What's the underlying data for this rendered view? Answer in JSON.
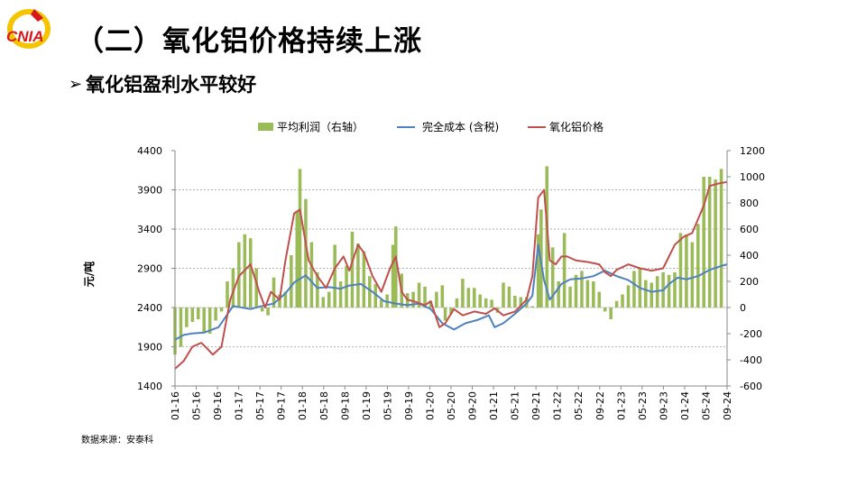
{
  "header": {
    "logo_text": "CNIA",
    "title": "（二）氧化铝价格持续上涨",
    "subtitle": "氧化铝盈利水平较好",
    "subtitle_marker": "arrow-right-icon"
  },
  "source_note": "数据来源：安泰科",
  "colors": {
    "bar": "#9bbb59",
    "cost_line": "#4f81bd",
    "price_line": "#c0504d",
    "logo_red": "#d7191c",
    "logo_yellow": "#f5c400"
  },
  "chart_data": {
    "type": "bar+line",
    "title": "",
    "ylabel": "元/吨",
    "y2label": "",
    "ylim": [
      1400,
      4400
    ],
    "y2lim": [
      -600,
      1200
    ],
    "yticks": [
      "4400",
      "3900",
      "3400",
      "2900",
      "2400",
      "1900",
      "1400"
    ],
    "y2ticks": [
      "1200",
      "1000",
      "800",
      "600",
      "400",
      "200",
      "0",
      "-200",
      "-400",
      "-600"
    ],
    "xticks": [
      "01-16",
      "05-16",
      "09-16",
      "01-17",
      "05-17",
      "09-17",
      "01-18",
      "05-18",
      "09-18",
      "01-19",
      "05-19",
      "09-19",
      "01-20",
      "05-20",
      "09-20",
      "01-21",
      "05-21",
      "09-21",
      "01-22",
      "05-22",
      "09-22",
      "01-23",
      "05-23",
      "09-23",
      "01-24",
      "05-24",
      "09-24"
    ],
    "grid": "horizontal-dashed",
    "legend_position": "top",
    "series": [
      {
        "name": "平均利润（右轴）",
        "type": "bar",
        "axis": "right",
        "points": [
          [
            0,
            -360
          ],
          [
            2,
            -300
          ],
          [
            4,
            -150
          ],
          [
            6,
            -110
          ],
          [
            8,
            -90
          ],
          [
            10,
            -190
          ],
          [
            12,
            -200
          ],
          [
            14,
            -100
          ],
          [
            16,
            -30
          ],
          [
            18,
            200
          ],
          [
            20,
            300
          ],
          [
            22,
            500
          ],
          [
            24,
            560
          ],
          [
            26,
            530
          ],
          [
            28,
            300
          ],
          [
            30,
            -30
          ],
          [
            32,
            -60
          ],
          [
            34,
            230
          ],
          [
            36,
            100
          ],
          [
            38,
            120
          ],
          [
            40,
            400
          ],
          [
            42,
            740
          ],
          [
            43,
            1060
          ],
          [
            45,
            830
          ],
          [
            47,
            500
          ],
          [
            49,
            270
          ],
          [
            51,
            80
          ],
          [
            53,
            120
          ],
          [
            55,
            480
          ],
          [
            57,
            200
          ],
          [
            59,
            320
          ],
          [
            61,
            580
          ],
          [
            63,
            490
          ],
          [
            65,
            430
          ],
          [
            67,
            240
          ],
          [
            69,
            180
          ],
          [
            71,
            60
          ],
          [
            73,
            100
          ],
          [
            75,
            480
          ],
          [
            76,
            620
          ],
          [
            78,
            260
          ],
          [
            80,
            110
          ],
          [
            82,
            120
          ],
          [
            84,
            190
          ],
          [
            86,
            160
          ],
          [
            88,
            50
          ],
          [
            90,
            120
          ],
          [
            92,
            170
          ],
          [
            93,
            -100
          ],
          [
            95,
            -50
          ],
          [
            97,
            70
          ],
          [
            99,
            220
          ],
          [
            101,
            150
          ],
          [
            103,
            150
          ],
          [
            105,
            100
          ],
          [
            107,
            70
          ],
          [
            109,
            60
          ],
          [
            111,
            -40
          ],
          [
            113,
            190
          ],
          [
            115,
            160
          ],
          [
            117,
            90
          ],
          [
            119,
            80
          ],
          [
            121,
            80
          ],
          [
            123,
            10
          ],
          [
            125,
            560
          ],
          [
            126,
            750
          ],
          [
            128,
            1080
          ],
          [
            130,
            460
          ],
          [
            132,
            200
          ],
          [
            134,
            570
          ],
          [
            136,
            160
          ],
          [
            138,
            250
          ],
          [
            140,
            280
          ],
          [
            142,
            210
          ],
          [
            144,
            200
          ],
          [
            146,
            120
          ],
          [
            148,
            -30
          ],
          [
            150,
            -90
          ],
          [
            152,
            50
          ],
          [
            154,
            100
          ],
          [
            156,
            170
          ],
          [
            158,
            280
          ],
          [
            160,
            300
          ],
          [
            162,
            210
          ],
          [
            164,
            190
          ],
          [
            166,
            240
          ],
          [
            168,
            270
          ],
          [
            170,
            250
          ],
          [
            172,
            270
          ],
          [
            174,
            570
          ],
          [
            176,
            560
          ],
          [
            178,
            500
          ],
          [
            180,
            640
          ],
          [
            182,
            1000
          ],
          [
            184,
            1000
          ],
          [
            186,
            980
          ],
          [
            188,
            1060
          ]
        ]
      },
      {
        "name": "完全成本 (含税)",
        "type": "line",
        "axis": "left",
        "points": [
          [
            0,
            1990
          ],
          [
            3,
            2050
          ],
          [
            6,
            2070
          ],
          [
            10,
            2080
          ],
          [
            15,
            2150
          ],
          [
            20,
            2420
          ],
          [
            26,
            2380
          ],
          [
            30,
            2420
          ],
          [
            34,
            2450
          ],
          [
            38,
            2580
          ],
          [
            41,
            2720
          ],
          [
            45,
            2810
          ],
          [
            49,
            2650
          ],
          [
            53,
            2660
          ],
          [
            57,
            2640
          ],
          [
            60,
            2680
          ],
          [
            64,
            2700
          ],
          [
            68,
            2600
          ],
          [
            72,
            2480
          ],
          [
            76,
            2450
          ],
          [
            80,
            2430
          ],
          [
            84,
            2450
          ],
          [
            88,
            2380
          ],
          [
            92,
            2200
          ],
          [
            96,
            2120
          ],
          [
            100,
            2200
          ],
          [
            104,
            2240
          ],
          [
            108,
            2300
          ],
          [
            110,
            2150
          ],
          [
            113,
            2200
          ],
          [
            117,
            2320
          ],
          [
            121,
            2450
          ],
          [
            123,
            2550
          ],
          [
            125,
            3200
          ],
          [
            127,
            2750
          ],
          [
            129,
            2500
          ],
          [
            131,
            2600
          ],
          [
            133,
            2700
          ],
          [
            136,
            2760
          ],
          [
            140,
            2770
          ],
          [
            144,
            2800
          ],
          [
            148,
            2870
          ],
          [
            152,
            2800
          ],
          [
            156,
            2750
          ],
          [
            160,
            2650
          ],
          [
            164,
            2600
          ],
          [
            168,
            2620
          ],
          [
            170,
            2700
          ],
          [
            173,
            2780
          ],
          [
            176,
            2760
          ],
          [
            180,
            2800
          ],
          [
            184,
            2880
          ],
          [
            188,
            2930
          ],
          [
            190,
            2950
          ]
        ]
      },
      {
        "name": "氧化铝价格",
        "type": "line",
        "axis": "left",
        "points": [
          [
            0,
            1620
          ],
          [
            3,
            1720
          ],
          [
            6,
            1900
          ],
          [
            9,
            1950
          ],
          [
            11,
            1880
          ],
          [
            13,
            1800
          ],
          [
            16,
            1900
          ],
          [
            19,
            2500
          ],
          [
            22,
            2800
          ],
          [
            26,
            2950
          ],
          [
            29,
            2600
          ],
          [
            31,
            2400
          ],
          [
            33,
            2600
          ],
          [
            36,
            2500
          ],
          [
            38,
            3000
          ],
          [
            41,
            3600
          ],
          [
            43,
            3650
          ],
          [
            46,
            3000
          ],
          [
            49,
            2800
          ],
          [
            52,
            2650
          ],
          [
            55,
            2900
          ],
          [
            58,
            3050
          ],
          [
            60,
            2870
          ],
          [
            63,
            3200
          ],
          [
            65,
            3100
          ],
          [
            68,
            2800
          ],
          [
            71,
            2600
          ],
          [
            74,
            2900
          ],
          [
            76,
            3050
          ],
          [
            78,
            2600
          ],
          [
            80,
            2500
          ],
          [
            83,
            2470
          ],
          [
            86,
            2430
          ],
          [
            88,
            2480
          ],
          [
            91,
            2150
          ],
          [
            93,
            2200
          ],
          [
            96,
            2380
          ],
          [
            99,
            2300
          ],
          [
            103,
            2350
          ],
          [
            107,
            2320
          ],
          [
            110,
            2390
          ],
          [
            113,
            2300
          ],
          [
            117,
            2350
          ],
          [
            121,
            2500
          ],
          [
            123,
            2800
          ],
          [
            125,
            3800
          ],
          [
            127,
            3900
          ],
          [
            129,
            3000
          ],
          [
            131,
            2950
          ],
          [
            133,
            3050
          ],
          [
            135,
            3050
          ],
          [
            138,
            3000
          ],
          [
            142,
            2980
          ],
          [
            146,
            2950
          ],
          [
            148,
            2850
          ],
          [
            150,
            2800
          ],
          [
            152,
            2880
          ],
          [
            156,
            2950
          ],
          [
            160,
            2900
          ],
          [
            164,
            2870
          ],
          [
            168,
            2900
          ],
          [
            172,
            3200
          ],
          [
            175,
            3300
          ],
          [
            178,
            3350
          ],
          [
            182,
            3700
          ],
          [
            184,
            3950
          ],
          [
            187,
            3980
          ],
          [
            190,
            4000
          ]
        ]
      }
    ]
  }
}
